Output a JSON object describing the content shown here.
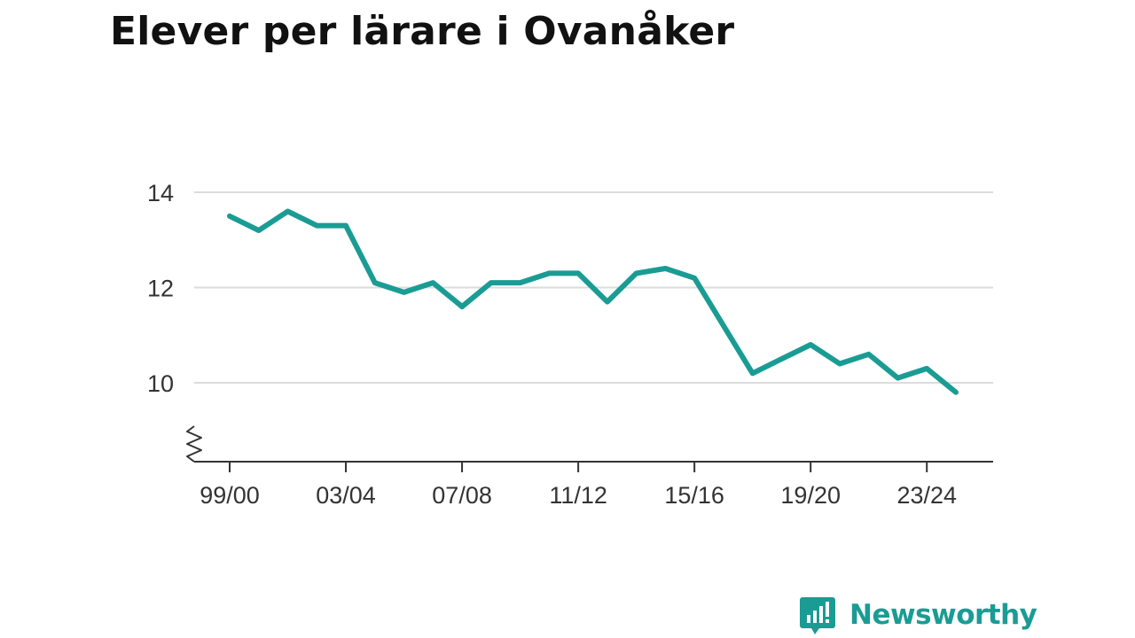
{
  "title": "Elever per lärare i Ovanåker",
  "brand": {
    "name": "Newsworthy",
    "icon": "newsworthy-bar-chart-icon",
    "color": "#1a9c94"
  },
  "chart_data": {
    "type": "line",
    "title": "Elever per lärare i Ovanåker",
    "xlabel": "",
    "ylabel": "",
    "x": [
      "99/00",
      "00/01",
      "01/02",
      "02/03",
      "03/04",
      "04/05",
      "05/06",
      "06/07",
      "07/08",
      "08/09",
      "09/10",
      "10/11",
      "11/12",
      "12/13",
      "13/14",
      "14/15",
      "15/16",
      "16/17",
      "17/18",
      "18/19",
      "19/20",
      "20/21",
      "21/22",
      "22/23",
      "23/24",
      "24/25"
    ],
    "x_tick_labels": [
      "99/00",
      "03/04",
      "07/08",
      "11/12",
      "15/16",
      "19/20",
      "23/24"
    ],
    "series": [
      {
        "values": [
          13.5,
          13.2,
          13.6,
          13.3,
          13.3,
          12.1,
          11.9,
          12.1,
          11.6,
          12.1,
          12.1,
          12.3,
          12.3,
          11.7,
          12.3,
          12.4,
          12.2,
          11.2,
          10.2,
          10.5,
          10.8,
          10.4,
          10.6,
          10.1,
          10.3,
          9.8
        ],
        "color": "#1a9c94"
      }
    ],
    "y_ticks": [
      10,
      12,
      14
    ],
    "ylim": [
      8.4,
      14.3
    ],
    "y_axis_break": true,
    "grid": true,
    "legend": "none"
  }
}
